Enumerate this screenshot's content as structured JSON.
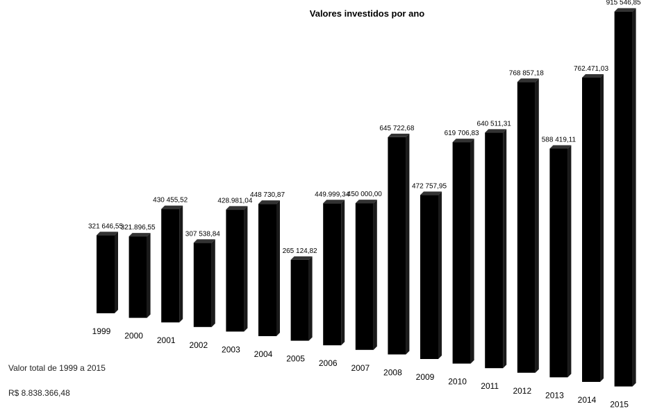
{
  "chart_data": {
    "type": "bar",
    "title": "Valores investidos por ano",
    "xlabel": "",
    "ylabel": "",
    "ylim": [
      0,
      1000000
    ],
    "grid": false,
    "categories": [
      "1999",
      "2000",
      "2001",
      "2002",
      "2003",
      "2004",
      "2005",
      "2006",
      "2007",
      "2008",
      "2009",
      "2010",
      "2011",
      "2012",
      "2013",
      "2014",
      "2015"
    ],
    "values": [
      321646.55,
      321896.55,
      430455.52,
      307538.84,
      428981.04,
      448730.87,
      265124.82,
      449999.34,
      450000.0,
      645722.68,
      472757.95,
      619706.83,
      640511.31,
      768857.18,
      588419.11,
      762471.03,
      915546.85
    ],
    "value_labels": [
      "321 646,55",
      "321.896,55",
      "430 455,52",
      "307 538,84",
      "428.981,04",
      "448 730,87",
      "265 124,82",
      "449.999,34",
      "450 000,00",
      "645 722,68",
      "472 757,95",
      "619 706,83",
      "640 511,31",
      "768 857,18",
      "588 419,11",
      "762.471,03",
      "915 546,85"
    ],
    "bar_color": "#000000"
  },
  "footer": {
    "total_label": "Valor total de 1999 a 2015",
    "total_value": "R$ 8.838.366,48"
  }
}
